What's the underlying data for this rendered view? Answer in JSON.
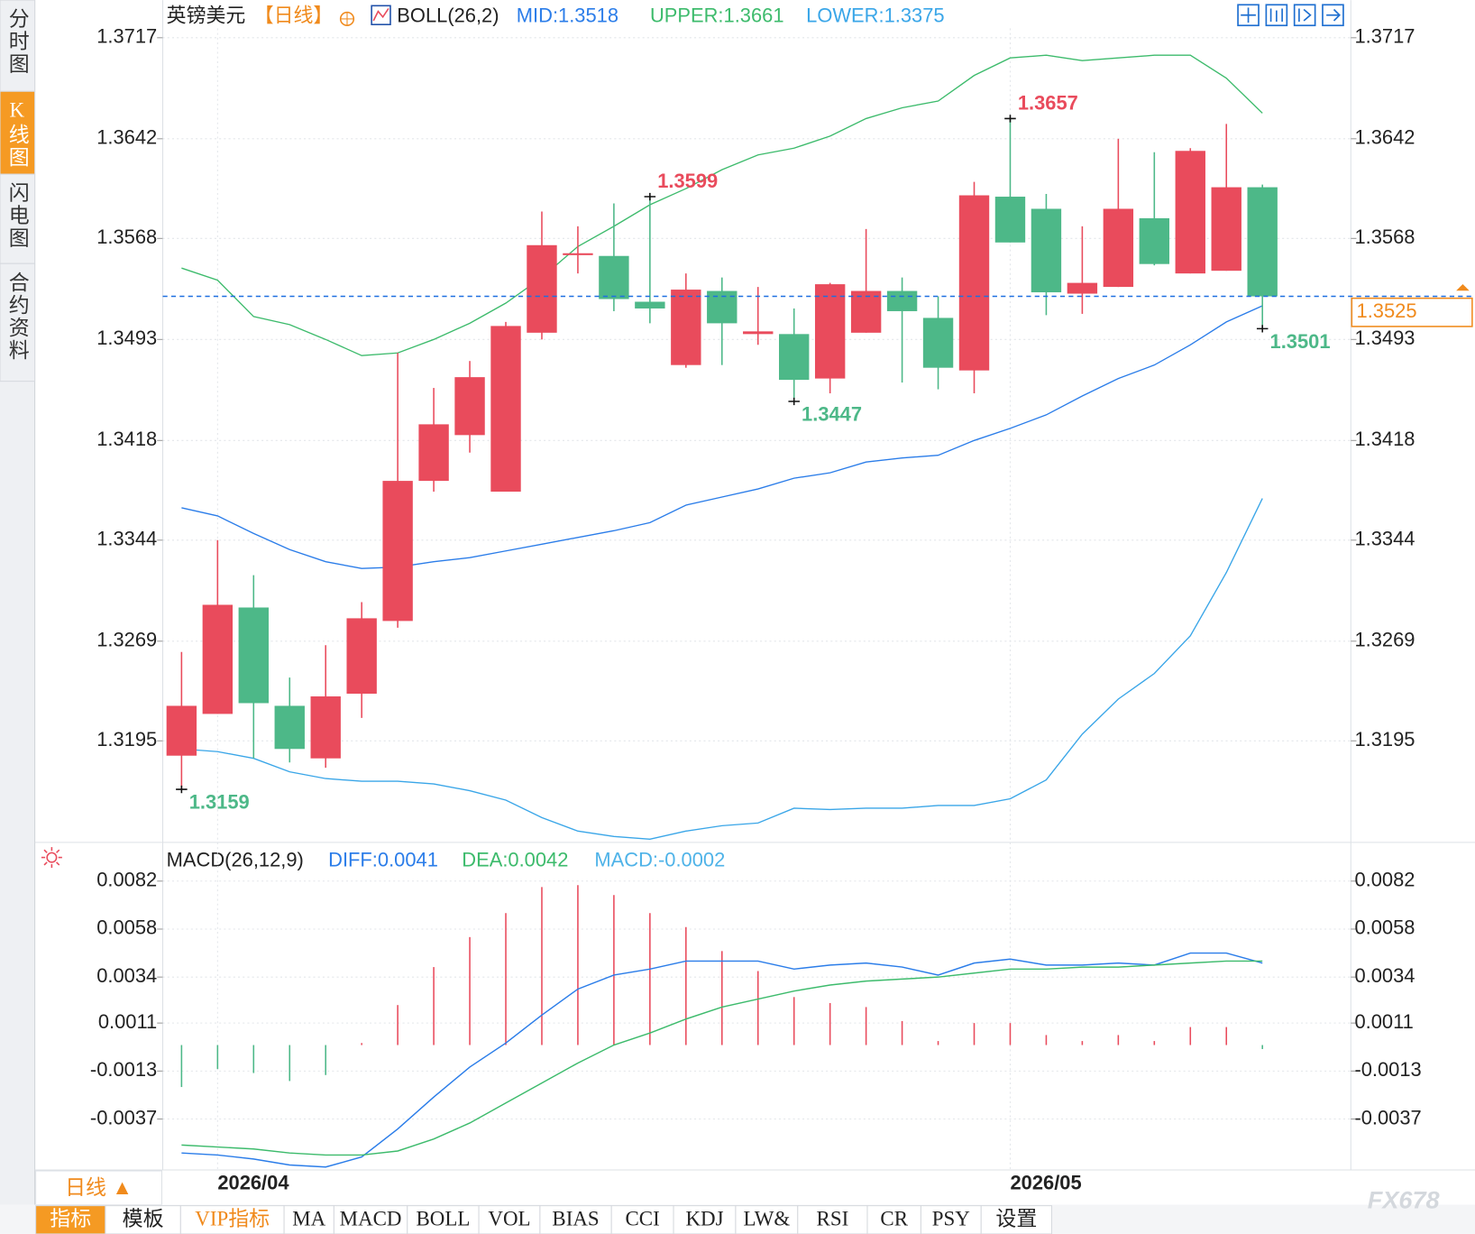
{
  "sidebar_tabs": [
    "分时图",
    "K线图",
    "闪电图",
    "合约资料"
  ],
  "active_tab": 1,
  "toolbar": [
    "指标",
    "模板",
    "VIP指标",
    "MA",
    "MACD",
    "BOLL",
    "VOL",
    "BIAS",
    "CCI",
    "KDJ",
    "LW&",
    "RSI",
    "CR",
    "PSY",
    "设置"
  ],
  "period_button": "日线 ▲",
  "watermark": "FX678",
  "chart_data": [
    {
      "type": "candlestick",
      "title": "英镑美元",
      "period": "【日线】",
      "indicator": "BOLL(26,2)",
      "categories": [
        null,
        "2026/04",
        null,
        null,
        null,
        null,
        null,
        null,
        null,
        null,
        null,
        null,
        null,
        null,
        null,
        null,
        null,
        null,
        null,
        null,
        null,
        null,
        null,
        "2026/05",
        null,
        null,
        null,
        null,
        null,
        null,
        null
      ],
      "ohlc": {
        "open": [
          1.3184,
          1.3215,
          1.3294,
          1.3221,
          1.3182,
          1.323,
          1.3284,
          1.3388,
          1.3422,
          1.338,
          1.3498,
          1.3556,
          1.3555,
          1.3521,
          1.3474,
          1.3529,
          1.3497,
          1.3497,
          1.3464,
          1.3498,
          1.3529,
          1.3509,
          1.347,
          1.3599,
          1.359,
          1.3527,
          1.3532,
          1.3583,
          1.3542,
          1.3544,
          1.3606
        ],
        "high": [
          1.3261,
          1.3344,
          1.3318,
          1.3242,
          1.3266,
          1.3298,
          1.3483,
          1.3457,
          1.3477,
          1.3506,
          1.3588,
          1.3577,
          1.3594,
          1.3599,
          1.3542,
          1.3539,
          1.3532,
          1.3516,
          1.3535,
          1.3575,
          1.3539,
          1.3525,
          1.361,
          1.3657,
          1.3601,
          1.3577,
          1.3642,
          1.3632,
          1.3635,
          1.3653,
          1.3608
        ],
        "low": [
          1.3159,
          1.3215,
          1.3182,
          1.3179,
          1.3175,
          1.3212,
          1.3279,
          1.338,
          1.3409,
          1.338,
          1.3493,
          1.3542,
          1.3514,
          1.3505,
          1.3472,
          1.3474,
          1.3489,
          1.3447,
          1.3453,
          1.3498,
          1.3461,
          1.3456,
          1.3453,
          1.3565,
          1.3511,
          1.3512,
          1.3532,
          1.3548,
          1.3542,
          1.3544,
          1.3501
        ],
        "close": [
          1.3221,
          1.3296,
          1.3223,
          1.3189,
          1.3228,
          1.3286,
          1.3388,
          1.343,
          1.3465,
          1.3503,
          1.3563,
          1.3557,
          1.3523,
          1.3516,
          1.353,
          1.3505,
          1.3499,
          1.3463,
          1.3534,
          1.3529,
          1.3514,
          1.3472,
          1.36,
          1.3565,
          1.3528,
          1.3535,
          1.359,
          1.3549,
          1.3633,
          1.3606,
          1.3525
        ]
      },
      "up_color": "#e94b5c",
      "down_color": "#4db888",
      "series": [
        {
          "name": "MID:1.3518",
          "color": "#2b7de9",
          "values": [
            1.3368,
            1.3362,
            1.3349,
            1.3337,
            1.3328,
            1.3323,
            1.3324,
            1.3328,
            1.3331,
            1.3336,
            1.3341,
            1.3346,
            1.3351,
            1.3357,
            1.337,
            1.3376,
            1.3382,
            1.339,
            1.3394,
            1.3402,
            1.3405,
            1.3407,
            1.3418,
            1.3427,
            1.3437,
            1.3451,
            1.3464,
            1.3474,
            1.3489,
            1.3506,
            1.3518
          ]
        },
        {
          "name": "UPPER:1.3661",
          "color": "#3dbb6c",
          "values": [
            1.3546,
            1.3537,
            1.351,
            1.3504,
            1.3493,
            1.3481,
            1.3483,
            1.3493,
            1.3505,
            1.352,
            1.3539,
            1.3562,
            1.3577,
            1.3593,
            1.3605,
            1.3619,
            1.363,
            1.3635,
            1.3644,
            1.3657,
            1.3665,
            1.367,
            1.3689,
            1.3702,
            1.3704,
            1.37,
            1.3702,
            1.3704,
            1.3704,
            1.3687,
            1.3661
          ]
        },
        {
          "name": "LOWER:1.3375",
          "color": "#3aa6e8",
          "values": [
            1.3189,
            1.3187,
            1.3182,
            1.3172,
            1.3167,
            1.3165,
            1.3165,
            1.3163,
            1.3158,
            1.3151,
            1.3138,
            1.3128,
            1.3124,
            1.3122,
            1.3128,
            1.3132,
            1.3134,
            1.3145,
            1.3144,
            1.3145,
            1.3145,
            1.3147,
            1.3147,
            1.3152,
            1.3166,
            1.32,
            1.3226,
            1.3245,
            1.3273,
            1.332,
            1.3375
          ]
        }
      ],
      "annotations": [
        1.3657,
        1.3599,
        1.3447,
        1.3159,
        1.3501
      ],
      "last_price": 1.3525,
      "last_price_color": "#f08a1c",
      "ylim": [
        1.3121,
        1.3724
      ],
      "yticks": [
        1.3717,
        1.3642,
        1.3568,
        1.3493,
        1.3418,
        1.3344,
        1.3269,
        1.3195
      ],
      "grid": true
    },
    {
      "type": "macd",
      "title": "MACD(26,12,9)",
      "series": [
        {
          "name": "DIFF:0.0041",
          "color": "#2b7de9",
          "values": [
            -0.0054,
            -0.0055,
            -0.0057,
            -0.006,
            -0.0061,
            -0.0056,
            -0.0042,
            -0.0026,
            -0.0011,
            0.0001,
            0.0015,
            0.0028,
            0.0035,
            0.0038,
            0.0042,
            0.0042,
            0.0042,
            0.0038,
            0.004,
            0.0041,
            0.0039,
            0.0035,
            0.0041,
            0.0043,
            0.004,
            0.004,
            0.0041,
            0.004,
            0.0046,
            0.0046,
            0.0041
          ]
        },
        {
          "name": "DEA:0.0042",
          "color": "#3dbb6c",
          "values": [
            -0.005,
            -0.0051,
            -0.0052,
            -0.0054,
            -0.0055,
            -0.0055,
            -0.0053,
            -0.0047,
            -0.0039,
            -0.0029,
            -0.0019,
            -0.0009,
            0.0,
            0.0006,
            0.0013,
            0.0019,
            0.0023,
            0.0027,
            0.003,
            0.0032,
            0.0033,
            0.0034,
            0.0036,
            0.0038,
            0.0038,
            0.0039,
            0.0039,
            0.004,
            0.0041,
            0.0042,
            0.0042
          ]
        },
        {
          "name": "MACD:-0.0002",
          "color": "#4fb3e8",
          "values": [
            -0.0021,
            -0.0012,
            -0.0014,
            -0.0018,
            -0.0015,
            0.0001,
            0.002,
            0.0039,
            0.0054,
            0.0066,
            0.0079,
            0.008,
            0.0075,
            0.0066,
            0.0059,
            0.0047,
            0.0037,
            0.0024,
            0.0021,
            0.0019,
            0.0012,
            0.0002,
            0.0011,
            0.0011,
            0.0005,
            0.0002,
            0.0005,
            0.0002,
            0.0009,
            0.0009,
            -0.0002
          ]
        }
      ],
      "up_color": "#e94b5c",
      "down_color": "#4db888",
      "ylim": [
        -0.0062,
        0.0099
      ],
      "yticks": [
        0.0082,
        0.0058,
        0.0034,
        0.0011,
        -0.0013,
        -0.0037
      ],
      "grid": true
    }
  ]
}
